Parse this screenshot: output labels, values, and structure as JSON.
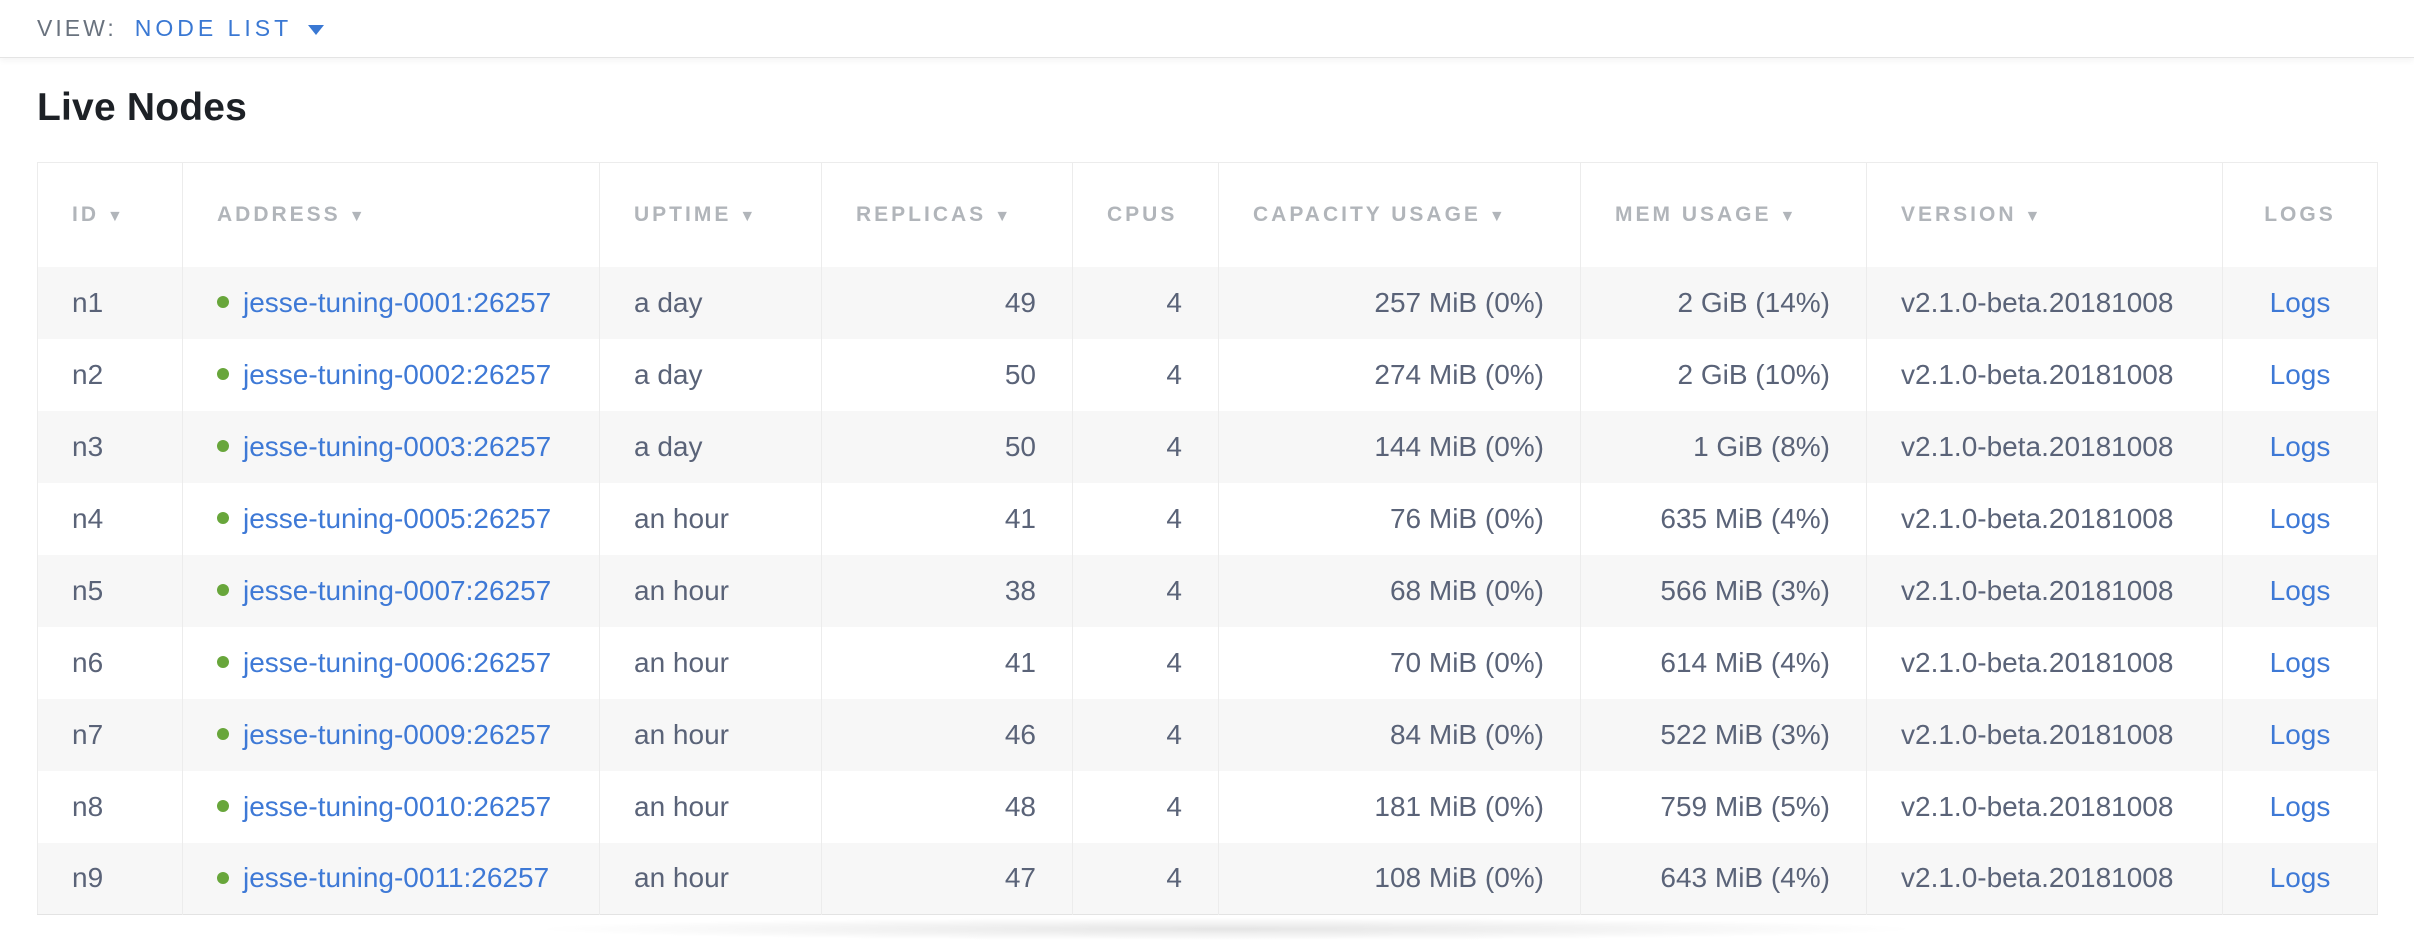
{
  "topbar": {
    "view_label": "VIEW:",
    "view_value": "NODE LIST"
  },
  "page": {
    "title": "Live Nodes"
  },
  "icons": {
    "sort_desc": "▼"
  },
  "colors": {
    "link": "#3e79d6",
    "accent": "#3a78d3",
    "body_text": "#5a6378",
    "header_text": "#b1b5ba",
    "status_green": "#68a63b",
    "row_stripe": "#f7f7f7"
  },
  "table": {
    "columns": [
      {
        "key": "id",
        "label": "ID",
        "sorted": true
      },
      {
        "key": "address",
        "label": "ADDRESS",
        "sorted": true
      },
      {
        "key": "uptime",
        "label": "UPTIME",
        "sorted": true
      },
      {
        "key": "replicas",
        "label": "REPLICAS",
        "sorted": true
      },
      {
        "key": "cpus",
        "label": "CPUS",
        "sorted": false
      },
      {
        "key": "capacity",
        "label": "CAPACITY USAGE",
        "sorted": true
      },
      {
        "key": "mem",
        "label": "MEM USAGE",
        "sorted": true
      },
      {
        "key": "version",
        "label": "VERSION",
        "sorted": true
      },
      {
        "key": "logs",
        "label": "LOGS",
        "sorted": false
      }
    ],
    "rows": [
      {
        "id": "n1",
        "address": "jesse-tuning-0001:26257",
        "status": "healthy",
        "uptime": "a day",
        "replicas": "49",
        "cpus": "4",
        "capacity": "257 MiB (0%)",
        "mem": "2 GiB (14%)",
        "version": "v2.1.0-beta.20181008",
        "logs": "Logs"
      },
      {
        "id": "n2",
        "address": "jesse-tuning-0002:26257",
        "status": "healthy",
        "uptime": "a day",
        "replicas": "50",
        "cpus": "4",
        "capacity": "274 MiB (0%)",
        "mem": "2 GiB (10%)",
        "version": "v2.1.0-beta.20181008",
        "logs": "Logs"
      },
      {
        "id": "n3",
        "address": "jesse-tuning-0003:26257",
        "status": "healthy",
        "uptime": "a day",
        "replicas": "50",
        "cpus": "4",
        "capacity": "144 MiB (0%)",
        "mem": "1 GiB (8%)",
        "version": "v2.1.0-beta.20181008",
        "logs": "Logs"
      },
      {
        "id": "n4",
        "address": "jesse-tuning-0005:26257",
        "status": "healthy",
        "uptime": "an hour",
        "replicas": "41",
        "cpus": "4",
        "capacity": "76 MiB (0%)",
        "mem": "635 MiB (4%)",
        "version": "v2.1.0-beta.20181008",
        "logs": "Logs"
      },
      {
        "id": "n5",
        "address": "jesse-tuning-0007:26257",
        "status": "healthy",
        "uptime": "an hour",
        "replicas": "38",
        "cpus": "4",
        "capacity": "68 MiB (0%)",
        "mem": "566 MiB (3%)",
        "version": "v2.1.0-beta.20181008",
        "logs": "Logs"
      },
      {
        "id": "n6",
        "address": "jesse-tuning-0006:26257",
        "status": "healthy",
        "uptime": "an hour",
        "replicas": "41",
        "cpus": "4",
        "capacity": "70 MiB (0%)",
        "mem": "614 MiB (4%)",
        "version": "v2.1.0-beta.20181008",
        "logs": "Logs"
      },
      {
        "id": "n7",
        "address": "jesse-tuning-0009:26257",
        "status": "healthy",
        "uptime": "an hour",
        "replicas": "46",
        "cpus": "4",
        "capacity": "84 MiB (0%)",
        "mem": "522 MiB (3%)",
        "version": "v2.1.0-beta.20181008",
        "logs": "Logs"
      },
      {
        "id": "n8",
        "address": "jesse-tuning-0010:26257",
        "status": "healthy",
        "uptime": "an hour",
        "replicas": "48",
        "cpus": "4",
        "capacity": "181 MiB (0%)",
        "mem": "759 MiB (5%)",
        "version": "v2.1.0-beta.20181008",
        "logs": "Logs"
      },
      {
        "id": "n9",
        "address": "jesse-tuning-0011:26257",
        "status": "healthy",
        "uptime": "an hour",
        "replicas": "47",
        "cpus": "4",
        "capacity": "108 MiB (0%)",
        "mem": "643 MiB (4%)",
        "version": "v2.1.0-beta.20181008",
        "logs": "Logs"
      }
    ]
  }
}
